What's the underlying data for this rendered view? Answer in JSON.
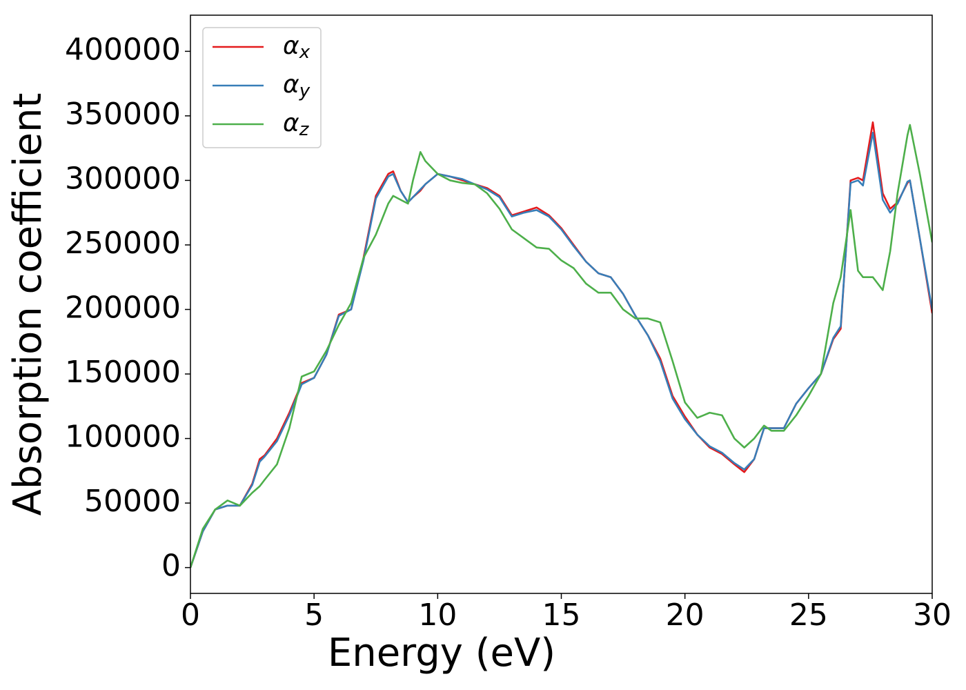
{
  "chart_data": {
    "type": "line",
    "xlabel": "Energy (eV)",
    "ylabel": "Absorption coefficient",
    "x": [
      0,
      0.5,
      1,
      1.5,
      2,
      2.5,
      2.8,
      3,
      3.5,
      4,
      4.5,
      5,
      5.5,
      6,
      6.5,
      7,
      7.5,
      8,
      8.2,
      8.5,
      8.8,
      9,
      9.3,
      9.5,
      10,
      10.5,
      11,
      11.5,
      12,
      12.5,
      13,
      13.5,
      14,
      14.5,
      15,
      15.5,
      16,
      16.5,
      17,
      17.5,
      18,
      18.5,
      19,
      19.5,
      20,
      20.5,
      21,
      21.5,
      22,
      22.4,
      22.8,
      23.2,
      23.5,
      24,
      24.5,
      25,
      25.5,
      26,
      26.3,
      26.7,
      27,
      27.2,
      27.6,
      28,
      28.3,
      28.6,
      29,
      29.1,
      29.5,
      30
    ],
    "series": [
      {
        "name": "αx",
        "color": "#e41a1c",
        "values": [
          0,
          28000,
          45000,
          48000,
          48000,
          65000,
          84000,
          87000,
          100000,
          120000,
          143000,
          147000,
          165000,
          196000,
          200000,
          240000,
          288000,
          305000,
          307000,
          292000,
          283000,
          287000,
          292000,
          297000,
          305000,
          303000,
          300000,
          297000,
          294000,
          288000,
          273000,
          276000,
          279000,
          273000,
          263000,
          250000,
          237000,
          228000,
          225000,
          212000,
          195000,
          180000,
          162000,
          133000,
          117000,
          103000,
          93000,
          88000,
          80000,
          74000,
          84000,
          108000,
          108000,
          108000,
          127000,
          139000,
          150000,
          177000,
          185000,
          300000,
          302000,
          300000,
          345000,
          290000,
          278000,
          283000,
          298000,
          300000,
          255000,
          197000
        ]
      },
      {
        "name": "αy",
        "color": "#377eb8",
        "values": [
          0,
          28000,
          45000,
          48000,
          48000,
          64000,
          82000,
          86000,
          98000,
          118000,
          142000,
          147000,
          165000,
          195000,
          200000,
          238000,
          286000,
          303000,
          305000,
          292000,
          283000,
          287000,
          293000,
          297000,
          305000,
          303000,
          301000,
          297000,
          293000,
          287000,
          272000,
          275000,
          277000,
          272000,
          262000,
          249000,
          237000,
          228000,
          225000,
          212000,
          195000,
          180000,
          160000,
          131000,
          115000,
          103000,
          94000,
          89000,
          81000,
          76000,
          84000,
          108000,
          108000,
          108000,
          127000,
          139000,
          150000,
          178000,
          187000,
          298000,
          300000,
          296000,
          337000,
          285000,
          275000,
          282000,
          299000,
          300000,
          255000,
          200000
        ]
      },
      {
        "name": "αz",
        "color": "#4daf4a",
        "values": [
          0,
          30000,
          45000,
          52000,
          48000,
          58000,
          63000,
          68000,
          80000,
          108000,
          148000,
          152000,
          168000,
          188000,
          205000,
          240000,
          258000,
          282000,
          288000,
          285000,
          282000,
          300000,
          322000,
          315000,
          305000,
          300000,
          298000,
          297000,
          290000,
          278000,
          262000,
          255000,
          248000,
          247000,
          238000,
          232000,
          220000,
          213000,
          213000,
          200000,
          193000,
          193000,
          190000,
          160000,
          128000,
          116000,
          120000,
          118000,
          100000,
          93000,
          100000,
          110000,
          106000,
          106000,
          118000,
          133000,
          150000,
          205000,
          225000,
          277000,
          230000,
          225000,
          225000,
          215000,
          245000,
          290000,
          335000,
          343000,
          305000,
          252000
        ]
      }
    ],
    "xlim": [
      0,
      30
    ],
    "xticks": [
      0,
      5,
      10,
      15,
      20,
      25,
      30
    ],
    "ylim": [
      -20000,
      428000
    ],
    "yticks": [
      0,
      50000,
      100000,
      150000,
      200000,
      250000,
      300000,
      350000,
      400000
    ],
    "legend": "upper left"
  }
}
